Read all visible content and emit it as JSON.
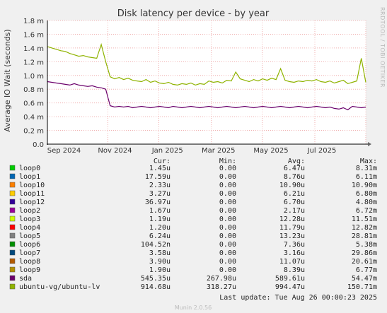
{
  "chart_data": {
    "type": "line",
    "title": "Disk latency per device - by year",
    "ylabel": "Average IO Wait (seconds)",
    "side_text": "RRDTOOL / TOBI OETIKER",
    "ylim": [
      0,
      1.8
    ],
    "y_ticks": [
      {
        "v": 0.0,
        "label": "0.0"
      },
      {
        "v": 0.2,
        "label": "0.2 m"
      },
      {
        "v": 0.4,
        "label": "0.4 m"
      },
      {
        "v": 0.6,
        "label": "0.6 m"
      },
      {
        "v": 0.8,
        "label": "0.8 m"
      },
      {
        "v": 1.0,
        "label": "1.0 m"
      },
      {
        "v": 1.2,
        "label": "1.2 m"
      },
      {
        "v": 1.4,
        "label": "1.4 m"
      },
      {
        "v": 1.6,
        "label": "1.6 m"
      },
      {
        "v": 1.8,
        "label": "1.8 m"
      }
    ],
    "x_ticks": [
      {
        "t": 0.19,
        "label": "Sep 2024"
      },
      {
        "t": 0.35,
        "label": "Nov 2024"
      },
      {
        "t": 0.515,
        "label": "Jan 2025"
      },
      {
        "t": 0.675,
        "label": "Mar 2025"
      },
      {
        "t": 0.84,
        "label": "May 2025"
      },
      {
        "t": 1.0,
        "label": "Jul 2025"
      }
    ],
    "x_range_note": "",
    "columns": [
      "Cur:",
      "Min:",
      "Avg:",
      "Max:"
    ],
    "legend": [
      {
        "name": "loop0",
        "color": "#00cc00",
        "cur": "1.45u",
        "min": "0.00",
        "avg": "6.47u",
        "max": "8.31m"
      },
      {
        "name": "loop1",
        "color": "#0066b3",
        "cur": "17.59u",
        "min": "0.00",
        "avg": "8.76u",
        "max": "6.11m"
      },
      {
        "name": "loop10",
        "color": "#ff8000",
        "cur": "2.33u",
        "min": "0.00",
        "avg": "10.90u",
        "max": "10.90m"
      },
      {
        "name": "loop11",
        "color": "#ffcc00",
        "cur": "3.27u",
        "min": "0.00",
        "avg": "6.21u",
        "max": "6.80m"
      },
      {
        "name": "loop12",
        "color": "#330099",
        "cur": "36.97u",
        "min": "0.00",
        "avg": "6.70u",
        "max": "4.80m"
      },
      {
        "name": "loop2",
        "color": "#990099",
        "cur": "1.67u",
        "min": "0.00",
        "avg": "2.17u",
        "max": "6.72m"
      },
      {
        "name": "loop3",
        "color": "#ccff00",
        "cur": "1.19u",
        "min": "0.00",
        "avg": "12.28u",
        "max": "11.51m"
      },
      {
        "name": "loop4",
        "color": "#ff0000",
        "cur": "1.20u",
        "min": "0.00",
        "avg": "11.79u",
        "max": "12.82m"
      },
      {
        "name": "loop5",
        "color": "#808080",
        "cur": "6.24u",
        "min": "0.00",
        "avg": "13.23u",
        "max": "28.81m"
      },
      {
        "name": "loop6",
        "color": "#008f00",
        "cur": "104.52n",
        "min": "0.00",
        "avg": "7.36u",
        "max": "5.38m"
      },
      {
        "name": "loop7",
        "color": "#00487d",
        "cur": "3.58u",
        "min": "0.00",
        "avg": "3.16u",
        "max": "29.86m"
      },
      {
        "name": "loop8",
        "color": "#b35a00",
        "cur": "3.90u",
        "min": "0.00",
        "avg": "11.07u",
        "max": "20.61m"
      },
      {
        "name": "loop9",
        "color": "#b38f00",
        "cur": "1.90u",
        "min": "0.00",
        "avg": "8.39u",
        "max": "6.77m"
      },
      {
        "name": "sda",
        "color": "#6b006b",
        "cur": "545.35u",
        "min": "267.98u",
        "avg": "589.61u",
        "max": "54.47m"
      },
      {
        "name": "ubuntu-vg/ubuntu-lv",
        "color": "#8fb300",
        "cur": "914.68u",
        "min": "318.27u",
        "avg": "994.47u",
        "max": "150.71m"
      }
    ],
    "last_update": "Last update: Tue Aug 26 00:00:23 2025",
    "footer_brand": "Munin 2.0.56",
    "approx_series": {
      "ubuntu-vg/ubuntu-lv": [
        1.42,
        1.4,
        1.38,
        1.36,
        1.35,
        1.32,
        1.3,
        1.28,
        1.29,
        1.27,
        1.26,
        1.25,
        1.45,
        1.2,
        0.98,
        0.95,
        0.97,
        0.94,
        0.96,
        0.93,
        0.92,
        0.91,
        0.94,
        0.9,
        0.92,
        0.89,
        0.88,
        0.9,
        0.87,
        0.86,
        0.88,
        0.87,
        0.89,
        0.86,
        0.88,
        0.87,
        0.92,
        0.9,
        0.91,
        0.89,
        0.93,
        0.92,
        1.05,
        0.95,
        0.93,
        0.91,
        0.94,
        0.92,
        0.95,
        0.93,
        0.96,
        0.94,
        1.1,
        0.93,
        0.91,
        0.9,
        0.92,
        0.91,
        0.93,
        0.92,
        0.94,
        0.91,
        0.9,
        0.92,
        0.89,
        0.91,
        0.93,
        0.88,
        0.9,
        0.92,
        1.25,
        0.9
      ],
      "sda": [
        0.91,
        0.9,
        0.89,
        0.88,
        0.87,
        0.86,
        0.88,
        0.86,
        0.85,
        0.84,
        0.85,
        0.83,
        0.82,
        0.8,
        0.56,
        0.54,
        0.55,
        0.54,
        0.55,
        0.53,
        0.54,
        0.55,
        0.54,
        0.53,
        0.54,
        0.55,
        0.54,
        0.53,
        0.55,
        0.54,
        0.53,
        0.54,
        0.55,
        0.54,
        0.53,
        0.54,
        0.55,
        0.54,
        0.53,
        0.54,
        0.55,
        0.54,
        0.53,
        0.54,
        0.55,
        0.54,
        0.53,
        0.54,
        0.55,
        0.54,
        0.53,
        0.54,
        0.55,
        0.54,
        0.53,
        0.54,
        0.55,
        0.54,
        0.53,
        0.54,
        0.55,
        0.54,
        0.53,
        0.54,
        0.52,
        0.51,
        0.53,
        0.5,
        0.55,
        0.54,
        0.53,
        0.54
      ]
    }
  }
}
